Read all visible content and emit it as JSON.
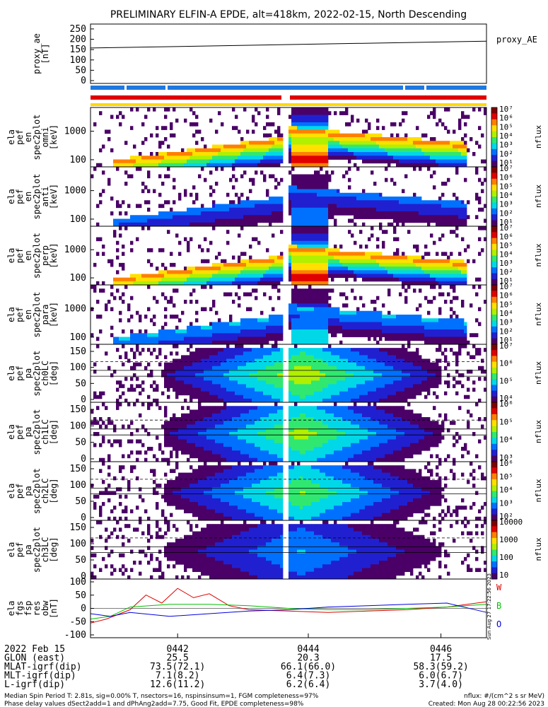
{
  "title": "PRELIMINARY ELFIN-A EPDE, alt=418km, 2022-02-15, North Descending",
  "chart_data": {
    "type": "heatmap",
    "panels": [
      {
        "ylabel_lines": [
          "proxy_ae",
          "[nT]"
        ],
        "kind": "line",
        "yticks": [
          "250",
          "200",
          "150",
          "100",
          "50",
          "0"
        ],
        "ylim": [
          0,
          260
        ],
        "legend": "proxy_AE",
        "series": [
          {
            "name": "proxy_AE",
            "x": [
              0,
              1
            ],
            "y": [
              155,
              185
            ]
          }
        ]
      },
      {
        "ylabel_lines": [
          "ela",
          "pef",
          "en",
          "spec2plot",
          "omni",
          "[keV]"
        ],
        "kind": "spec",
        "yticks": [
          "1000",
          "100"
        ],
        "cbar_labels": [
          "10⁷",
          "10⁶",
          "10⁵",
          "10⁴",
          "10³",
          "10²",
          "10¹"
        ],
        "cbar_title": "nflux"
      },
      {
        "ylabel_lines": [
          "ela",
          "pef",
          "en",
          "spec2plot",
          "anti",
          "[keV]"
        ],
        "kind": "spec",
        "yticks": [
          "1000",
          "100"
        ],
        "cbar_labels": [
          "10⁷",
          "10⁶",
          "10⁵",
          "10⁴",
          "10³",
          "10²",
          "10¹"
        ],
        "cbar_title": "nflux"
      },
      {
        "ylabel_lines": [
          "ela",
          "pef",
          "en",
          "spec2plot",
          "perp",
          "[keV]"
        ],
        "kind": "spec",
        "yticks": [
          "1000",
          "100"
        ],
        "cbar_labels": [
          "10⁷",
          "10⁶",
          "10⁵",
          "10⁴",
          "10³",
          "10²",
          "10¹"
        ],
        "cbar_title": "nflux"
      },
      {
        "ylabel_lines": [
          "ela",
          "pef",
          "en",
          "spec2plot",
          "para",
          "[keV]"
        ],
        "kind": "spec",
        "yticks": [
          "1000",
          "100"
        ],
        "cbar_labels": [
          "10⁷",
          "10⁶",
          "10⁵",
          "10⁴",
          "10³",
          "10²",
          "10¹"
        ],
        "cbar_title": "nflux"
      },
      {
        "ylabel_lines": [
          "ela",
          "pef",
          "pa",
          "spec2plot",
          "ch0LC",
          "[deg]"
        ],
        "kind": "pa",
        "yticks": [
          "150",
          "100",
          "50",
          "0"
        ],
        "cbar_labels": [
          "10⁷",
          "10⁶",
          "10⁵",
          "10⁴"
        ],
        "cbar_title": "nflux"
      },
      {
        "ylabel_lines": [
          "ela",
          "pef",
          "pa",
          "spec2plot",
          "ch1LC",
          "[deg]"
        ],
        "kind": "pa",
        "yticks": [
          "150",
          "100",
          "50",
          "0"
        ],
        "cbar_labels": [
          "10⁶",
          "10⁵",
          "10⁴",
          "10³"
        ],
        "cbar_title": "nflux"
      },
      {
        "ylabel_lines": [
          "ela",
          "pef",
          "pa",
          "spec2plot",
          "ch2LC",
          "[deg]"
        ],
        "kind": "pa",
        "yticks": [
          "150",
          "100",
          "50",
          "0"
        ],
        "cbar_labels": [
          "10⁶",
          "10⁵",
          "10⁴",
          "10³",
          "10²"
        ],
        "cbar_title": "nflux"
      },
      {
        "ylabel_lines": [
          "ela",
          "pef",
          "pa",
          "spec2plot",
          "ch3LC",
          "[deg]"
        ],
        "kind": "pa",
        "yticks": [
          "150",
          "100",
          "50",
          "0"
        ],
        "cbar_labels": [
          "10000",
          "1000",
          "100",
          "10"
        ],
        "cbar_title": "nflux"
      },
      {
        "ylabel_lines": [
          "ela",
          "fgs",
          "fsp",
          "res",
          "obw",
          "[nT]"
        ],
        "kind": "line",
        "yticks": [
          "100",
          "50",
          "0",
          "-50",
          "-100"
        ],
        "ylim": [
          -110,
          110
        ],
        "legend_items": [
          {
            "label": "W",
            "color": "#e00000"
          },
          {
            "label": "B",
            "color": "#00c000"
          },
          {
            "label": "O",
            "color": "#0000e0"
          }
        ],
        "series": [
          {
            "name": "W",
            "color": "#e00000",
            "x": [
              0,
              0.04,
              0.1,
              0.14,
              0.18,
              0.22,
              0.26,
              0.3,
              0.35,
              0.4,
              0.5,
              0.6,
              0.7,
              0.8,
              0.9,
              1
            ],
            "y": [
              -55,
              -40,
              -5,
              50,
              20,
              75,
              40,
              55,
              10,
              -5,
              -10,
              -15,
              -10,
              -5,
              5,
              25
            ]
          },
          {
            "name": "B",
            "color": "#00c000",
            "x": [
              0,
              0.05,
              0.1,
              0.2,
              0.3,
              0.4,
              0.5,
              0.6,
              0.7,
              0.8,
              0.9,
              1
            ],
            "y": [
              -40,
              -30,
              5,
              15,
              15,
              10,
              0,
              -5,
              -5,
              0,
              5,
              15
            ]
          },
          {
            "name": "O",
            "color": "#0000e0",
            "x": [
              0,
              0.05,
              0.1,
              0.2,
              0.3,
              0.4,
              0.5,
              0.6,
              0.7,
              0.8,
              0.9,
              1
            ],
            "y": [
              -20,
              -30,
              -15,
              -30,
              -20,
              -10,
              -5,
              5,
              10,
              15,
              20,
              -15
            ]
          }
        ]
      }
    ],
    "x_ticks": [
      "0442",
      "0444",
      "0446"
    ],
    "x_tick_positions": [
      0.22,
      0.55,
      0.885
    ],
    "color_scale": [
      "#ffffff",
      "#4a0066",
      "#2020d0",
      "#0070ff",
      "#00d8e8",
      "#30e870",
      "#b0f000",
      "#ffe000",
      "#ff8000",
      "#e00000",
      "#800000"
    ]
  },
  "ephemeris": {
    "rows": [
      {
        "label": "2022 Feb 15",
        "values": [
          "0442",
          "0444",
          "0446"
        ]
      },
      {
        "label": "GLON (east)",
        "values": [
          "25.5",
          "20.3",
          "17.5"
        ]
      },
      {
        "label": "MLAT-igrf(dip)",
        "values": [
          "73.5(72.1)",
          "66.1(66.0)",
          "58.3(59.2)"
        ]
      },
      {
        "label": "MLT-igrf(dip)",
        "values": [
          "7.1(8.2)",
          "6.4(7.3)",
          "6.0(6.7)"
        ]
      },
      {
        "label": "L-igrf(dip)",
        "values": [
          "12.6(11.2)",
          "6.2(6.4)",
          "3.7(4.0)"
        ]
      }
    ]
  },
  "footer": {
    "line1": "Median Spin Period T: 2.81s, sig=0.00% T, nsectors=16, nspinsinsum=1, FGM completeness=97%",
    "line2": "Phase delay values dSect2add=1 and dPhAng2add=7.75, Good Fit, EPDE completeness=98%",
    "right1": "nflux: #/(cm^2 s sr MeV)",
    "right2": "Created: Mon Aug 28 00:22:56 2023",
    "side_stamp": "Sun Aug 27 17:22:56 2023"
  }
}
